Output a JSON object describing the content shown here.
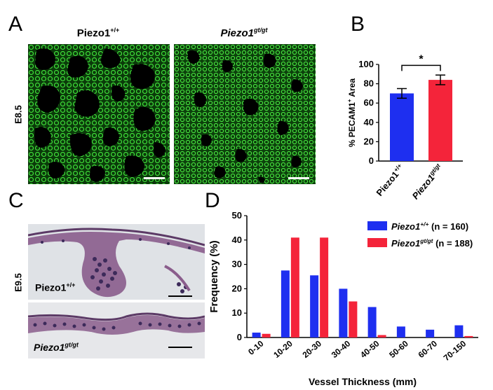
{
  "panels": {
    "a": {
      "letter": "A",
      "col1_title": "Piezo1",
      "col1_sup": "+/+",
      "col2_title": "Piezo1",
      "col2_sup": "gt/gt",
      "side_label": "E8.5"
    },
    "b": {
      "letter": "B",
      "significance": "*"
    },
    "c": {
      "letter": "C",
      "side_label": "E9.5",
      "top_label": "Piezo1",
      "top_sup": "+/+",
      "bottom_label": "Piezo1",
      "bottom_sup": "gt/gt"
    },
    "d": {
      "letter": "D"
    }
  },
  "colors": {
    "wildtype": "#1e2ff0",
    "mutant": "#f4243a",
    "green": "#2ed42a"
  },
  "chart_data": [
    {
      "type": "bar",
      "panel": "B",
      "categories": [
        "Piezo1+/+",
        "Piezo1gt/gt"
      ],
      "category_base": [
        "Piezo1",
        "Piezo1"
      ],
      "category_sup": [
        "+/+",
        "gt/gt"
      ],
      "values": [
        70,
        84
      ],
      "errors": [
        5,
        5
      ],
      "ylabel": "% PECAM1",
      "ylabel_sup": "+",
      "ylabel_suffix": " Area",
      "ylim": [
        0,
        100
      ],
      "yticks": [
        0,
        20,
        40,
        60,
        80,
        100
      ],
      "grid": false
    },
    {
      "type": "bar",
      "panel": "D",
      "categories": [
        "0-10",
        "10-20",
        "20-30",
        "30-40",
        "40-50",
        "50-60",
        "60-70",
        "70-150"
      ],
      "series": [
        {
          "name": "Piezo1+/+ (n = 160)",
          "name_base": "Piezo1",
          "name_sup": "+/+",
          "name_suffix": " (n = 160)",
          "values": [
            2,
            27.5,
            25.5,
            20,
            12.5,
            4.5,
            3.2,
            5
          ]
        },
        {
          "name": "Piezo1gt/gt (n = 188)",
          "name_base": "Piezo1",
          "name_sup": "gt/gt",
          "name_suffix": " (n = 188)",
          "values": [
            1.5,
            41,
            41,
            14.8,
            1,
            0,
            0,
            0.6
          ]
        }
      ],
      "xlabel": "Vessel Thickness (mm)",
      "ylabel": "Frequency (%)",
      "ylim": [
        0,
        50
      ],
      "yticks": [
        0,
        10,
        20,
        30,
        40,
        50
      ],
      "legend": "top-right",
      "grid": false
    }
  ]
}
